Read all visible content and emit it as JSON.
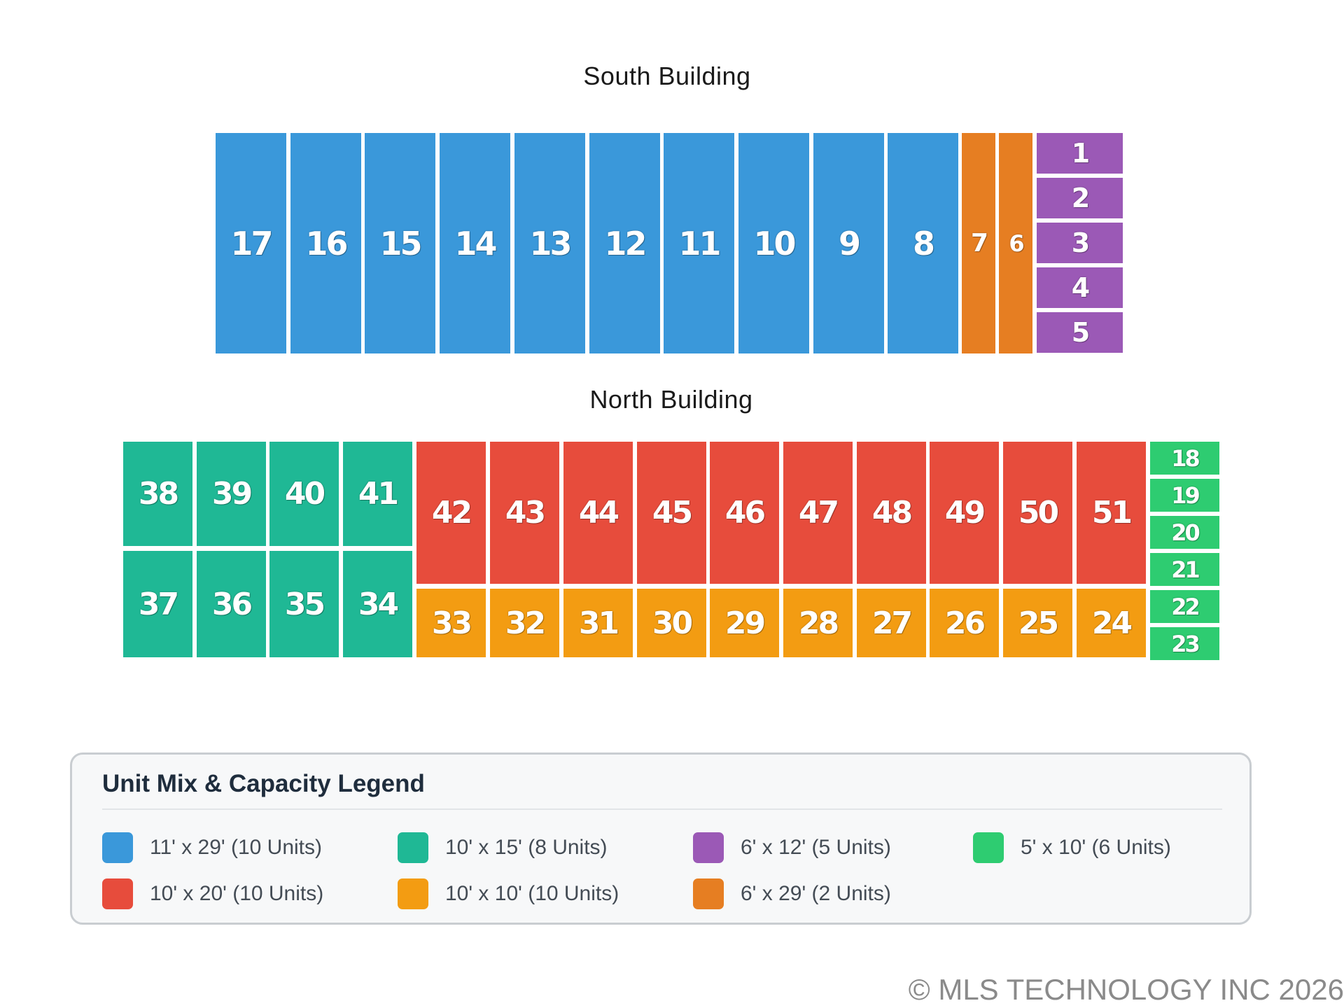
{
  "colors": {
    "blue": "#3a98da",
    "teal": "#1fb895",
    "purple": "#9b59b6",
    "green": "#2ecc71",
    "red": "#e74c3c",
    "yellow": "#f39c12",
    "orange": "#e67e22"
  },
  "south_building": {
    "title": "South Building",
    "units": [
      {
        "id": "17",
        "type": "blue"
      },
      {
        "id": "16",
        "type": "blue"
      },
      {
        "id": "15",
        "type": "blue"
      },
      {
        "id": "14",
        "type": "blue"
      },
      {
        "id": "13",
        "type": "blue"
      },
      {
        "id": "12",
        "type": "blue"
      },
      {
        "id": "11",
        "type": "blue"
      },
      {
        "id": "10",
        "type": "blue"
      },
      {
        "id": "9",
        "type": "blue"
      },
      {
        "id": "8",
        "type": "blue"
      },
      {
        "id": "7",
        "type": "orange"
      },
      {
        "id": "6",
        "type": "orange"
      },
      {
        "id": "1",
        "type": "purple"
      },
      {
        "id": "2",
        "type": "purple"
      },
      {
        "id": "3",
        "type": "purple"
      },
      {
        "id": "4",
        "type": "purple"
      },
      {
        "id": "5",
        "type": "purple"
      }
    ]
  },
  "north_building": {
    "title": "North Building",
    "units": [
      {
        "id": "38",
        "type": "teal"
      },
      {
        "id": "39",
        "type": "teal"
      },
      {
        "id": "40",
        "type": "teal"
      },
      {
        "id": "41",
        "type": "teal"
      },
      {
        "id": "37",
        "type": "teal"
      },
      {
        "id": "36",
        "type": "teal"
      },
      {
        "id": "35",
        "type": "teal"
      },
      {
        "id": "34",
        "type": "teal"
      },
      {
        "id": "42",
        "type": "red"
      },
      {
        "id": "43",
        "type": "red"
      },
      {
        "id": "44",
        "type": "red"
      },
      {
        "id": "45",
        "type": "red"
      },
      {
        "id": "46",
        "type": "red"
      },
      {
        "id": "47",
        "type": "red"
      },
      {
        "id": "48",
        "type": "red"
      },
      {
        "id": "49",
        "type": "red"
      },
      {
        "id": "50",
        "type": "red"
      },
      {
        "id": "51",
        "type": "red"
      },
      {
        "id": "33",
        "type": "yellow"
      },
      {
        "id": "32",
        "type": "yellow"
      },
      {
        "id": "31",
        "type": "yellow"
      },
      {
        "id": "30",
        "type": "yellow"
      },
      {
        "id": "29",
        "type": "yellow"
      },
      {
        "id": "28",
        "type": "yellow"
      },
      {
        "id": "27",
        "type": "yellow"
      },
      {
        "id": "26",
        "type": "yellow"
      },
      {
        "id": "25",
        "type": "yellow"
      },
      {
        "id": "24",
        "type": "yellow"
      },
      {
        "id": "18",
        "type": "green"
      },
      {
        "id": "19",
        "type": "green"
      },
      {
        "id": "20",
        "type": "green"
      },
      {
        "id": "21",
        "type": "green"
      },
      {
        "id": "22",
        "type": "green"
      },
      {
        "id": "23",
        "type": "green"
      }
    ]
  },
  "legend": {
    "title": "Unit Mix & Capacity Legend",
    "items": [
      {
        "color": "blue",
        "label": "11' x 29' (10 Units)"
      },
      {
        "color": "teal",
        "label": "10' x 15' (8 Units)"
      },
      {
        "color": "purple",
        "label": "6' x 12' (5 Units)"
      },
      {
        "color": "green",
        "label": "5' x 10' (6 Units)"
      },
      {
        "color": "red",
        "label": "10' x 20' (10 Units)"
      },
      {
        "color": "yellow",
        "label": "10' x 10' (10 Units)"
      },
      {
        "color": "orange",
        "label": "6' x 29' (2 Units)"
      }
    ]
  },
  "copyright": "© MLS TECHNOLOGY INC 2026"
}
